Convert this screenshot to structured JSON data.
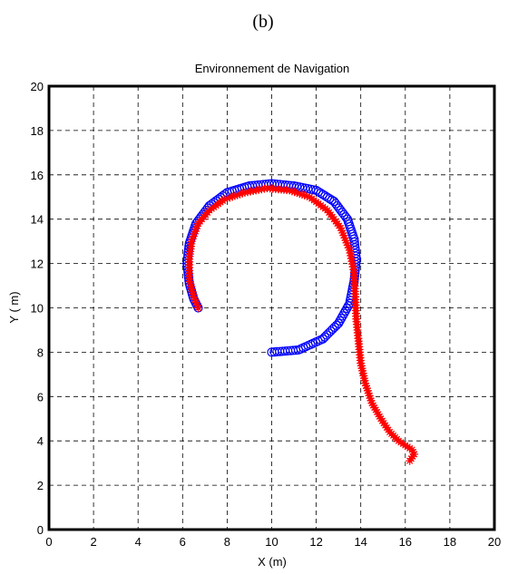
{
  "panel_label": "(b)",
  "chart_data": {
    "type": "scatter",
    "title": "Environnement de Navigation",
    "xlabel": "X (m)",
    "ylabel": "Y ( m)",
    "xlim": [
      0,
      20
    ],
    "ylim": [
      0,
      20
    ],
    "xticks": [
      0,
      2,
      4,
      6,
      8,
      10,
      12,
      14,
      16,
      18,
      20
    ],
    "yticks": [
      0,
      2,
      4,
      6,
      8,
      10,
      12,
      14,
      16,
      18,
      20
    ],
    "grid": true,
    "series": [
      {
        "marker": "circle",
        "color": "#0000ff",
        "x": [
          10.0,
          11.2,
          12.3,
          13.0,
          13.5,
          13.7,
          13.8,
          13.7,
          13.4,
          12.8,
          12.0,
          11.0,
          10.0,
          9.0,
          8.0,
          7.2,
          6.6,
          6.3,
          6.2,
          6.3,
          6.5,
          6.7
        ],
        "y": [
          8.0,
          8.1,
          8.6,
          9.3,
          10.2,
          11.2,
          12.2,
          13.1,
          14.0,
          14.8,
          15.3,
          15.5,
          15.6,
          15.5,
          15.2,
          14.6,
          13.8,
          12.9,
          12.0,
          11.1,
          10.4,
          10.0
        ]
      },
      {
        "marker": "star",
        "color": "#ff0000",
        "x": [
          6.7,
          6.5,
          6.3,
          6.3,
          6.4,
          6.7,
          7.2,
          7.9,
          8.8,
          9.8,
          10.8,
          11.7,
          12.5,
          13.1,
          13.5,
          13.7,
          13.75,
          13.8,
          13.9,
          14.0,
          14.2,
          14.5,
          14.9,
          15.3,
          15.7,
          16.0,
          16.3,
          16.4,
          16.2
        ],
        "y": [
          10.0,
          10.5,
          11.3,
          12.2,
          13.0,
          13.8,
          14.4,
          14.9,
          15.2,
          15.4,
          15.3,
          15.0,
          14.4,
          13.6,
          12.6,
          11.6,
          10.5,
          9.5,
          8.5,
          7.5,
          6.6,
          5.7,
          5.0,
          4.4,
          4.0,
          3.8,
          3.6,
          3.4,
          3.1
        ]
      }
    ]
  }
}
